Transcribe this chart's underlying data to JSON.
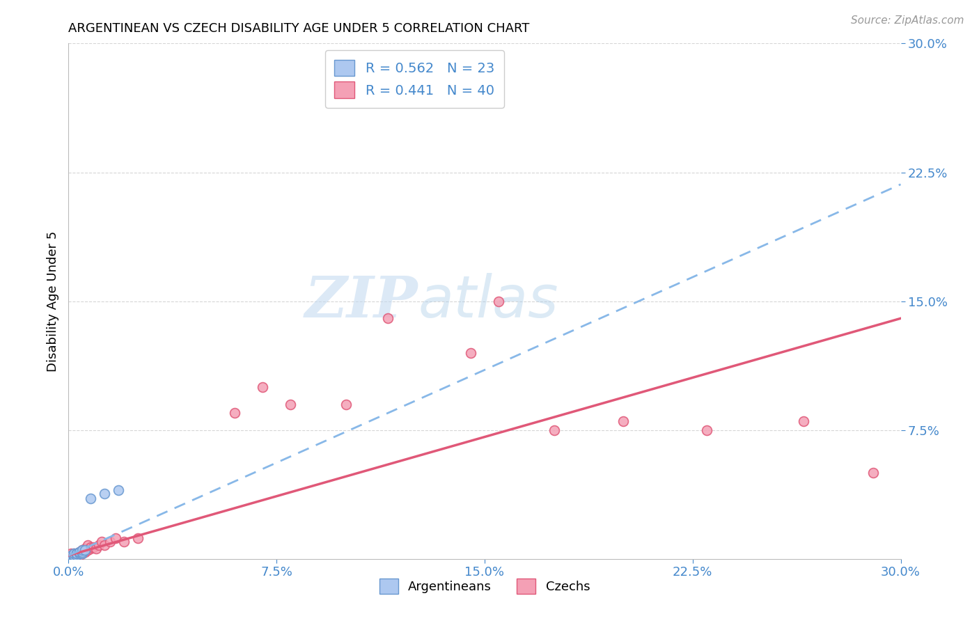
{
  "title": "ARGENTINEAN VS CZECH DISABILITY AGE UNDER 5 CORRELATION CHART",
  "source": "Source: ZipAtlas.com",
  "ylabel": "Disability Age Under 5",
  "xlim": [
    0.0,
    0.3
  ],
  "ylim": [
    0.0,
    0.3
  ],
  "xticks": [
    0.0,
    0.075,
    0.15,
    0.225,
    0.3
  ],
  "yticks": [
    0.075,
    0.15,
    0.225,
    0.3
  ],
  "xtick_labels": [
    "0.0%",
    "7.5%",
    "15.0%",
    "22.5%",
    "30.0%"
  ],
  "ytick_labels": [
    "7.5%",
    "15.0%",
    "22.5%",
    "30.0%"
  ],
  "argentinean_color": "#adc8f0",
  "czech_color": "#f4a0b5",
  "argentinean_edge": "#6898d0",
  "czech_edge": "#e05878",
  "trend_arg_color": "#88b8e8",
  "trend_czech_color": "#e05878",
  "R_arg": 0.562,
  "N_arg": 23,
  "R_czech": 0.441,
  "N_czech": 40,
  "legend_text_color": "#4488cc",
  "watermark_zip": "ZIP",
  "watermark_atlas": "atlas",
  "marker_size": 100,
  "trend_arg_slope": 0.72,
  "trend_arg_intercept": 0.002,
  "trend_czech_slope": 0.46,
  "trend_czech_intercept": 0.002,
  "argentinean_x": [
    0.001,
    0.001,
    0.001,
    0.001,
    0.001,
    0.002,
    0.002,
    0.002,
    0.002,
    0.002,
    0.003,
    0.003,
    0.003,
    0.004,
    0.004,
    0.004,
    0.005,
    0.005,
    0.005,
    0.006,
    0.008,
    0.013,
    0.018
  ],
  "argentinean_y": [
    0.001,
    0.001,
    0.001,
    0.001,
    0.002,
    0.001,
    0.001,
    0.002,
    0.002,
    0.003,
    0.002,
    0.003,
    0.003,
    0.003,
    0.004,
    0.004,
    0.003,
    0.004,
    0.005,
    0.005,
    0.035,
    0.038,
    0.04
  ],
  "czech_x": [
    0.001,
    0.001,
    0.001,
    0.002,
    0.002,
    0.002,
    0.003,
    0.003,
    0.004,
    0.004,
    0.005,
    0.005,
    0.005,
    0.006,
    0.006,
    0.007,
    0.007,
    0.008,
    0.008,
    0.009,
    0.01,
    0.011,
    0.012,
    0.013,
    0.015,
    0.017,
    0.02,
    0.025,
    0.06,
    0.07,
    0.08,
    0.1,
    0.115,
    0.145,
    0.155,
    0.175,
    0.2,
    0.23,
    0.265,
    0.29
  ],
  "czech_y": [
    0.001,
    0.002,
    0.003,
    0.001,
    0.002,
    0.003,
    0.002,
    0.003,
    0.002,
    0.004,
    0.003,
    0.004,
    0.005,
    0.004,
    0.006,
    0.005,
    0.008,
    0.006,
    0.007,
    0.007,
    0.006,
    0.008,
    0.01,
    0.008,
    0.01,
    0.012,
    0.01,
    0.012,
    0.085,
    0.1,
    0.09,
    0.09,
    0.14,
    0.12,
    0.15,
    0.075,
    0.08,
    0.075,
    0.08,
    0.05
  ]
}
